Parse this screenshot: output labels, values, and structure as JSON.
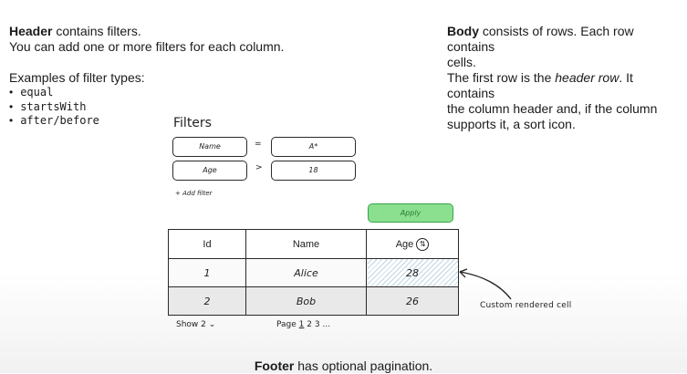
{
  "header_note": {
    "bold": "Header",
    "rest": " contains filters.",
    "line2": "You can add one or more filters for each column.",
    "examples_title": "Examples of filter types:",
    "types": [
      "equal",
      "startsWith",
      "after/before"
    ]
  },
  "body_note": {
    "bold": "Body",
    "line1_rest": " consists of rows. Each row contains",
    "line2": "cells.",
    "line3_pre": "The first row is the ",
    "line3_em": "header row",
    "line3_post": ". It contains",
    "line4": "the column header and, if the column",
    "line5": "supports it, a sort icon."
  },
  "filters": {
    "title": "Filters",
    "rows": [
      {
        "field": "Name",
        "op": "=",
        "value": "A*"
      },
      {
        "field": "Age",
        "op": ">",
        "value": "18"
      }
    ],
    "add_label": "+ Add filter",
    "apply_label": "Apply"
  },
  "table": {
    "columns": [
      "Id",
      "Name",
      "Age"
    ],
    "sort_icon": "sort-icon",
    "rows": [
      {
        "id": "1",
        "name": "Alice",
        "age": "28"
      },
      {
        "id": "2",
        "name": "Bob",
        "age": "26"
      }
    ]
  },
  "custom_cell_label": "Custom rendered cell",
  "pagination": {
    "show_label": "Show 2",
    "page_label": "Page",
    "pages": [
      "1",
      "2",
      "3"
    ],
    "ellipsis": "..."
  },
  "footer_note": {
    "bold": "Footer",
    "rest": " has optional pagination."
  },
  "colors": {
    "apply_bg": "#8ae08e",
    "apply_border": "#3aa447",
    "hatch": "#bfd6e3"
  }
}
